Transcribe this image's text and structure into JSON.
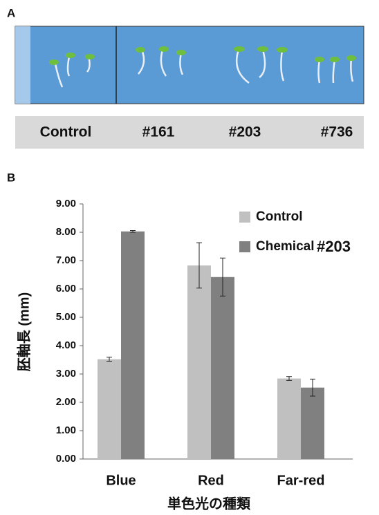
{
  "figure": {
    "panel_a_label": "A",
    "panel_b_label": "B",
    "sample_labels": [
      "Control",
      "#161",
      "#203",
      "#736"
    ]
  },
  "chart_data": {
    "type": "bar",
    "y_label": "胚軸長 (mm)",
    "x_label": "単色光の種類",
    "annotation": "#203",
    "categories": [
      "Blue",
      "Red",
      "Far-red"
    ],
    "series": [
      {
        "name": "Control",
        "color": "#c0c0c0",
        "values": [
          3.52,
          6.83,
          2.84
        ],
        "errors": [
          0.07,
          0.8,
          0.07
        ]
      },
      {
        "name": "Chemical",
        "color": "#808080",
        "values": [
          8.03,
          6.42,
          2.52
        ],
        "errors": [
          0.03,
          0.67,
          0.3
        ]
      }
    ],
    "ylim": [
      0,
      9
    ],
    "yticks": [
      {
        "value": 0,
        "label": "0.00"
      },
      {
        "value": 1,
        "label": "1.00"
      },
      {
        "value": 2,
        "label": "2.00"
      },
      {
        "value": 3,
        "label": "3.00"
      },
      {
        "value": 4,
        "label": "4.00"
      },
      {
        "value": 5,
        "label": "5.00"
      },
      {
        "value": 6,
        "label": "6.00"
      },
      {
        "value": 7,
        "label": "7.00"
      },
      {
        "value": 8,
        "label": "8.00"
      },
      {
        "value": 9,
        "label": "9.00"
      }
    ],
    "grid": false,
    "legend": "top-right"
  }
}
